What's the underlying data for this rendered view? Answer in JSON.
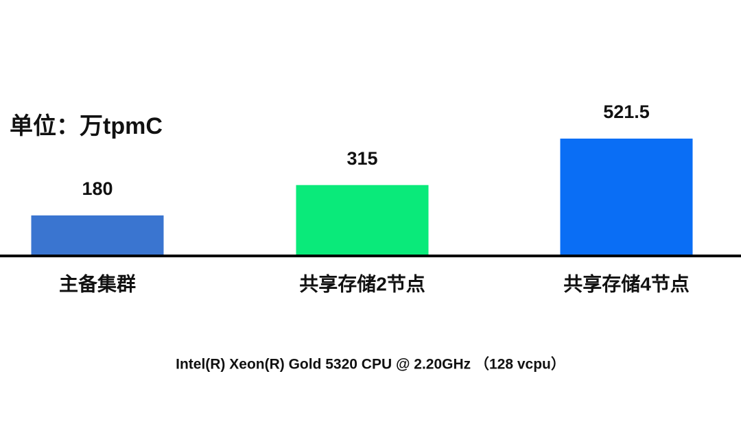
{
  "chart_data": {
    "type": "bar",
    "title": "单位：万tpmC",
    "categories": [
      "主备集群",
      "共享存储2节点",
      "共享存储4节点"
    ],
    "values": [
      180,
      315,
      521.5
    ],
    "colors": [
      "#3a75d0",
      "#0aea7a",
      "#0a6ef5"
    ],
    "footnote": "Intel(R) Xeon(R) Gold 5320 CPU @ 2.20GHz （128 vcpu）"
  }
}
